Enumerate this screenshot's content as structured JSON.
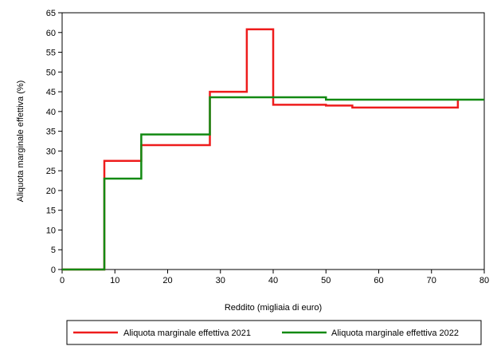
{
  "chart_data": {
    "type": "line",
    "title": "",
    "xlabel": "Reddito (migliaia di euro)",
    "ylabel": "Aliquota marginale effettiva (%)",
    "xlim": [
      0,
      80
    ],
    "ylim": [
      0,
      65
    ],
    "xticks": [
      0,
      10,
      20,
      30,
      40,
      50,
      60,
      70,
      80
    ],
    "yticks": [
      0,
      5,
      10,
      15,
      20,
      25,
      30,
      35,
      40,
      45,
      50,
      55,
      60,
      65
    ],
    "grid": false,
    "legend_position": "bottom",
    "step": true,
    "series": [
      {
        "name": "Aliquota marginale effettiva 2021",
        "color": "#ee1c1c",
        "x": [
          0,
          8,
          15,
          28,
          35,
          40,
          50,
          55,
          75
        ],
        "y": [
          0,
          27.5,
          31.5,
          45,
          60.8,
          41.7,
          41.5,
          41,
          43
        ]
      },
      {
        "name": "Aliquota marginale effettiva 2022",
        "color": "#138a13",
        "x": [
          0,
          8,
          15,
          28,
          50,
          55,
          80
        ],
        "y": [
          0,
          23,
          34.2,
          43.6,
          43.0,
          43.0,
          43.0
        ]
      }
    ]
  }
}
